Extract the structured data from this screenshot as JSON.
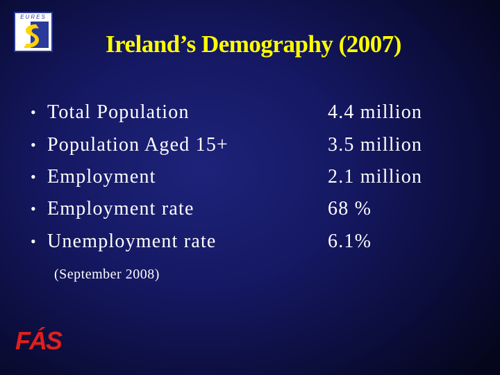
{
  "header": {
    "title": "Ireland’s Demography (2007)",
    "logo_text": "EURES"
  },
  "items": [
    {
      "label": "Total Population",
      "value": "4.4 million"
    },
    {
      "label": "Population Aged 15+",
      "value": "3.5 million"
    },
    {
      "label": "Employment",
      "value": "2.1 million"
    },
    {
      "label": "Employment rate",
      "value": "68 %"
    },
    {
      "label": "Unemployment rate",
      "value": "6.1%"
    }
  ],
  "note": "(September 2008)",
  "footer": {
    "logo_text": "FÁS"
  }
}
